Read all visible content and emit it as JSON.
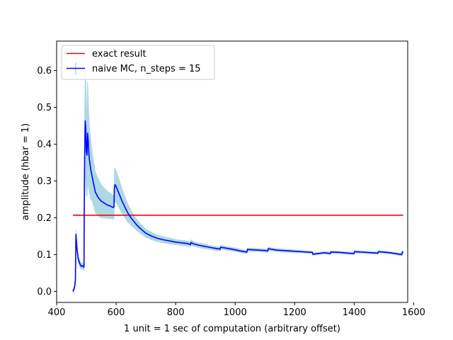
{
  "chart_data": {
    "type": "line",
    "title": "",
    "xlabel": "1 unit = 1 sec of computation (arbitrary offset)",
    "ylabel": "amplitude (hbar = 1)",
    "xlim": [
      400,
      1580
    ],
    "ylim": [
      -0.03,
      0.68
    ],
    "xticks": [
      400,
      600,
      800,
      1000,
      1200,
      1400,
      1600
    ],
    "yticks": [
      0.0,
      0.1,
      0.2,
      0.3,
      0.4,
      0.5,
      0.6
    ],
    "grid": false,
    "legend_position": "top-left",
    "series": [
      {
        "name": "exact result",
        "color": "#ff0000",
        "x": [
          455,
          1565
        ],
        "y": [
          0.207,
          0.207
        ]
      },
      {
        "name": "naive MC, n_steps = 15",
        "color": "#0000ff",
        "error_color": "#add8e6",
        "x": [
          455,
          460,
          463,
          465,
          468,
          472,
          478,
          483,
          487,
          490,
          492,
          493,
          494,
          496,
          498,
          500,
          502,
          504,
          506,
          508,
          510,
          515,
          520,
          525,
          530,
          540,
          550,
          560,
          570,
          580,
          590,
          593,
          594,
          596,
          600,
          610,
          620,
          630,
          640,
          650,
          660,
          670,
          680,
          690,
          700,
          720,
          740,
          760,
          780,
          800,
          820,
          840,
          850,
          851,
          860,
          880,
          900,
          920,
          940,
          950,
          951,
          980,
          1000,
          1030,
          1040,
          1041,
          1060,
          1080,
          1100,
          1110,
          1111,
          1140,
          1180,
          1220,
          1260,
          1261,
          1300,
          1320,
          1321,
          1350,
          1380,
          1400,
          1401,
          1440,
          1480,
          1481,
          1520,
          1560,
          1562,
          1565
        ],
        "y": [
          0.0,
          0.01,
          0.03,
          0.155,
          0.12,
          0.09,
          0.075,
          0.068,
          0.07,
          0.067,
          0.066,
          0.24,
          0.35,
          0.463,
          0.44,
          0.38,
          0.37,
          0.43,
          0.41,
          0.38,
          0.36,
          0.33,
          0.31,
          0.29,
          0.27,
          0.255,
          0.245,
          0.24,
          0.235,
          0.232,
          0.228,
          0.23,
          0.28,
          0.29,
          0.285,
          0.265,
          0.245,
          0.228,
          0.212,
          0.2,
          0.19,
          0.18,
          0.172,
          0.165,
          0.158,
          0.15,
          0.144,
          0.14,
          0.137,
          0.134,
          0.132,
          0.13,
          0.127,
          0.133,
          0.129,
          0.125,
          0.122,
          0.119,
          0.116,
          0.115,
          0.12,
          0.116,
          0.113,
          0.108,
          0.107,
          0.114,
          0.113,
          0.112,
          0.111,
          0.11,
          0.116,
          0.112,
          0.11,
          0.108,
          0.106,
          0.101,
          0.105,
          0.103,
          0.107,
          0.106,
          0.104,
          0.103,
          0.108,
          0.106,
          0.104,
          0.108,
          0.105,
          0.1,
          0.107,
          0.106
        ],
        "err": [
          0.004,
          0.006,
          0.01,
          0.012,
          0.01,
          0.01,
          0.008,
          0.008,
          0.008,
          0.008,
          0.008,
          0.05,
          0.1,
          0.14,
          0.13,
          0.12,
          0.11,
          0.14,
          0.12,
          0.1,
          0.09,
          0.08,
          0.065,
          0.06,
          0.055,
          0.05,
          0.045,
          0.04,
          0.037,
          0.034,
          0.032,
          0.033,
          0.04,
          0.045,
          0.043,
          0.038,
          0.033,
          0.028,
          0.024,
          0.02,
          0.017,
          0.015,
          0.013,
          0.012,
          0.011,
          0.01,
          0.009,
          0.008,
          0.008,
          0.007,
          0.007,
          0.007,
          0.006,
          0.007,
          0.006,
          0.006,
          0.006,
          0.005,
          0.005,
          0.005,
          0.005,
          0.005,
          0.005,
          0.004,
          0.004,
          0.004,
          0.004,
          0.004,
          0.004,
          0.004,
          0.004,
          0.004,
          0.004,
          0.003,
          0.003,
          0.003,
          0.003,
          0.003,
          0.003,
          0.003,
          0.003,
          0.003,
          0.003,
          0.003,
          0.003,
          0.003,
          0.003,
          0.003,
          0.003,
          0.003
        ]
      }
    ]
  }
}
